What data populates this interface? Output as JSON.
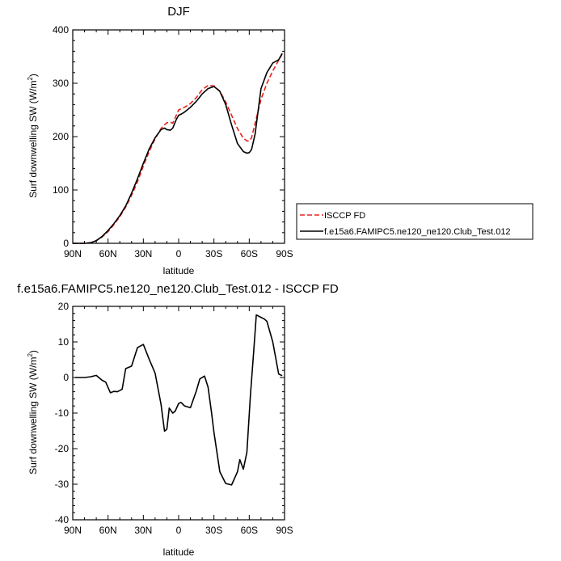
{
  "chart_data": [
    {
      "type": "line",
      "title": "DJF",
      "xlabel": "latitude",
      "ylabel": "Surf downwelling SW (W/m",
      "ylabel_sup": "2",
      "ylabel_close": ")",
      "xlim": [
        90,
        -90
      ],
      "ylim": [
        0,
        400
      ],
      "xticks": [
        90,
        60,
        30,
        0,
        -30,
        -60,
        -90
      ],
      "xtick_labels": [
        "90N",
        "60N",
        "30N",
        "0",
        "30S",
        "60S",
        "90S"
      ],
      "yticks": [
        0,
        100,
        200,
        300,
        400
      ],
      "ytick_labels": [
        "0",
        "100",
        "200",
        "300",
        "400"
      ],
      "legend_position": "right",
      "series": [
        {
          "name": "ISCCP FD",
          "color": "#e8231e",
          "dash": true,
          "x": [
            90,
            85,
            80,
            75,
            70,
            65,
            60,
            55,
            50,
            45,
            40,
            35,
            30,
            25,
            20,
            15,
            12,
            10,
            7,
            5,
            2,
            0,
            -2,
            -5,
            -10,
            -15,
            -20,
            -25,
            -30,
            -35,
            -40,
            -45,
            -50,
            -55,
            -58,
            -60,
            -62,
            -65,
            -70,
            -75,
            -80,
            -85,
            -88
          ],
          "y": [
            0,
            0,
            0,
            1,
            5,
            12,
            22,
            35,
            50,
            68,
            90,
            115,
            145,
            172,
            196,
            215,
            222,
            226,
            227,
            225,
            240,
            250,
            252,
            255,
            262,
            273,
            288,
            296,
            295,
            285,
            265,
            240,
            215,
            197,
            192,
            192,
            198,
            225,
            270,
            300,
            323,
            343,
            355
          ]
        },
        {
          "name": "f.e15a6.FAMIPC5.ne120_ne120.Club_Test.012",
          "color": "#000000",
          "dash": false,
          "x": [
            90,
            85,
            80,
            75,
            70,
            65,
            60,
            55,
            50,
            45,
            40,
            35,
            30,
            25,
            20,
            15,
            12,
            10,
            7,
            5,
            2,
            0,
            -2,
            -5,
            -10,
            -15,
            -20,
            -25,
            -30,
            -35,
            -40,
            -45,
            -50,
            -55,
            -58,
            -60,
            -62,
            -65,
            -70,
            -75,
            -80,
            -85,
            -88
          ],
          "y": [
            0,
            0,
            0,
            1,
            5,
            13,
            24,
            37,
            52,
            70,
            94,
            121,
            150,
            177,
            198,
            213,
            216,
            213,
            212,
            216,
            232,
            240,
            242,
            246,
            255,
            266,
            280,
            290,
            294,
            285,
            260,
            222,
            187,
            172,
            169,
            170,
            176,
            205,
            290,
            320,
            338,
            344,
            356
          ]
        }
      ]
    },
    {
      "type": "line",
      "title": "f.e15a6.FAMIPC5.ne120_ne120.Club_Test.012 - ISCCP FD",
      "xlabel": "latitude",
      "ylabel": "Surf downwelling SW (W/m",
      "ylabel_sup": "2",
      "ylabel_close": ")",
      "xlim": [
        90,
        -90
      ],
      "ylim": [
        -40,
        20
      ],
      "xticks": [
        90,
        60,
        30,
        0,
        -30,
        -60,
        -90
      ],
      "xtick_labels": [
        "90N",
        "60N",
        "30N",
        "0",
        "30S",
        "60S",
        "90S"
      ],
      "yticks": [
        -40,
        -30,
        -20,
        -10,
        0,
        10,
        20
      ],
      "ytick_labels": [
        "-40",
        "-30",
        "-20",
        "-10",
        "0",
        "10",
        "20"
      ],
      "series": [
        {
          "color": "#000000",
          "dash": false,
          "x": [
            88,
            80,
            75,
            70,
            65,
            62,
            58,
            55,
            52,
            48,
            45,
            40,
            35,
            30,
            25,
            20,
            15,
            12,
            10,
            8,
            5,
            3,
            0,
            -2,
            -5,
            -8,
            -10,
            -15,
            -18,
            -22,
            -25,
            -28,
            -30,
            -35,
            -40,
            -45,
            -50,
            -52,
            -55,
            -58,
            -61,
            -64,
            -66,
            -70,
            -73,
            -75,
            -80,
            -85,
            -88
          ],
          "y": [
            0,
            0,
            0.2,
            0.6,
            -0.8,
            -1.3,
            -4.3,
            -3.9,
            -4.0,
            -3.3,
            2.5,
            3.2,
            8.4,
            9.3,
            5.1,
            1.2,
            -7.5,
            -15.1,
            -14.5,
            -8.6,
            -10.0,
            -9.5,
            -7.3,
            -7.0,
            -8.0,
            -8.3,
            -8.5,
            -3.8,
            -0.4,
            0.4,
            -2.7,
            -10.0,
            -15.4,
            -26.5,
            -29.8,
            -30.2,
            -26.5,
            -23.1,
            -25.8,
            -21.0,
            -5.0,
            8.3,
            17.6,
            16.9,
            16.4,
            15.8,
            10.0,
            1.0,
            0.5
          ]
        }
      ]
    }
  ]
}
